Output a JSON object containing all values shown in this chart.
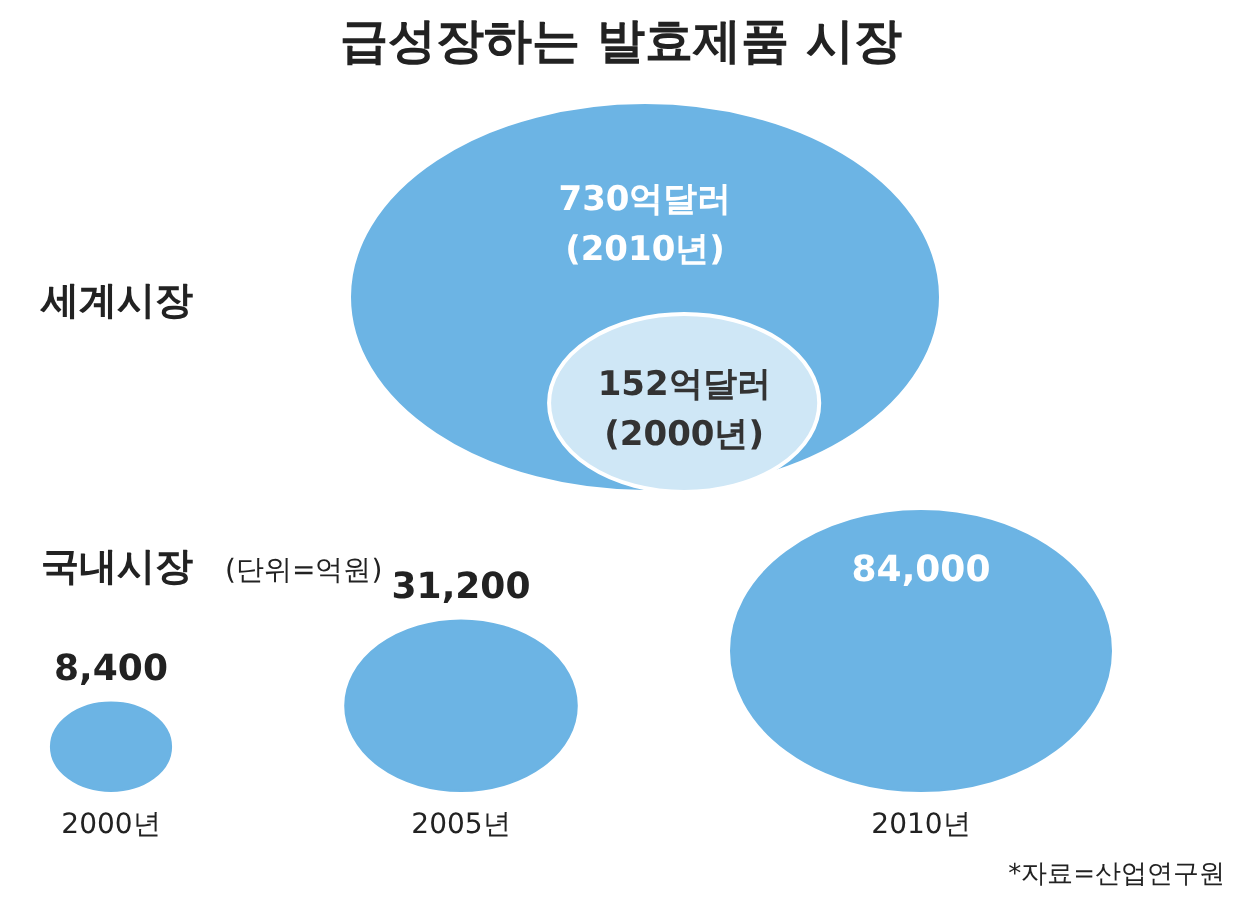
{
  "chart_data": [
    {
      "type": "other",
      "title": "급성장하는 발효제품 시장",
      "subtitle": "세계시장",
      "categories": [
        "(2010년)",
        "(2000년)"
      ],
      "values": [
        730,
        152
      ],
      "value_labels": [
        "730억달러",
        "152억달러"
      ],
      "colors": [
        "#6cb4e4",
        "#cfe7f6"
      ]
    },
    {
      "type": "other",
      "title": "국내시장",
      "subtitle": "(단위=억원)",
      "categories": [
        "2000년",
        "2005년",
        "2010년"
      ],
      "values": [
        8400,
        31200,
        84000
      ],
      "value_labels": [
        "8,400",
        "31,200",
        "84,000"
      ],
      "colors": [
        "#6cb4e4",
        "#6cb4e4",
        "#6cb4e4"
      ],
      "annotations": [
        "*자료=산업연구원"
      ]
    }
  ]
}
